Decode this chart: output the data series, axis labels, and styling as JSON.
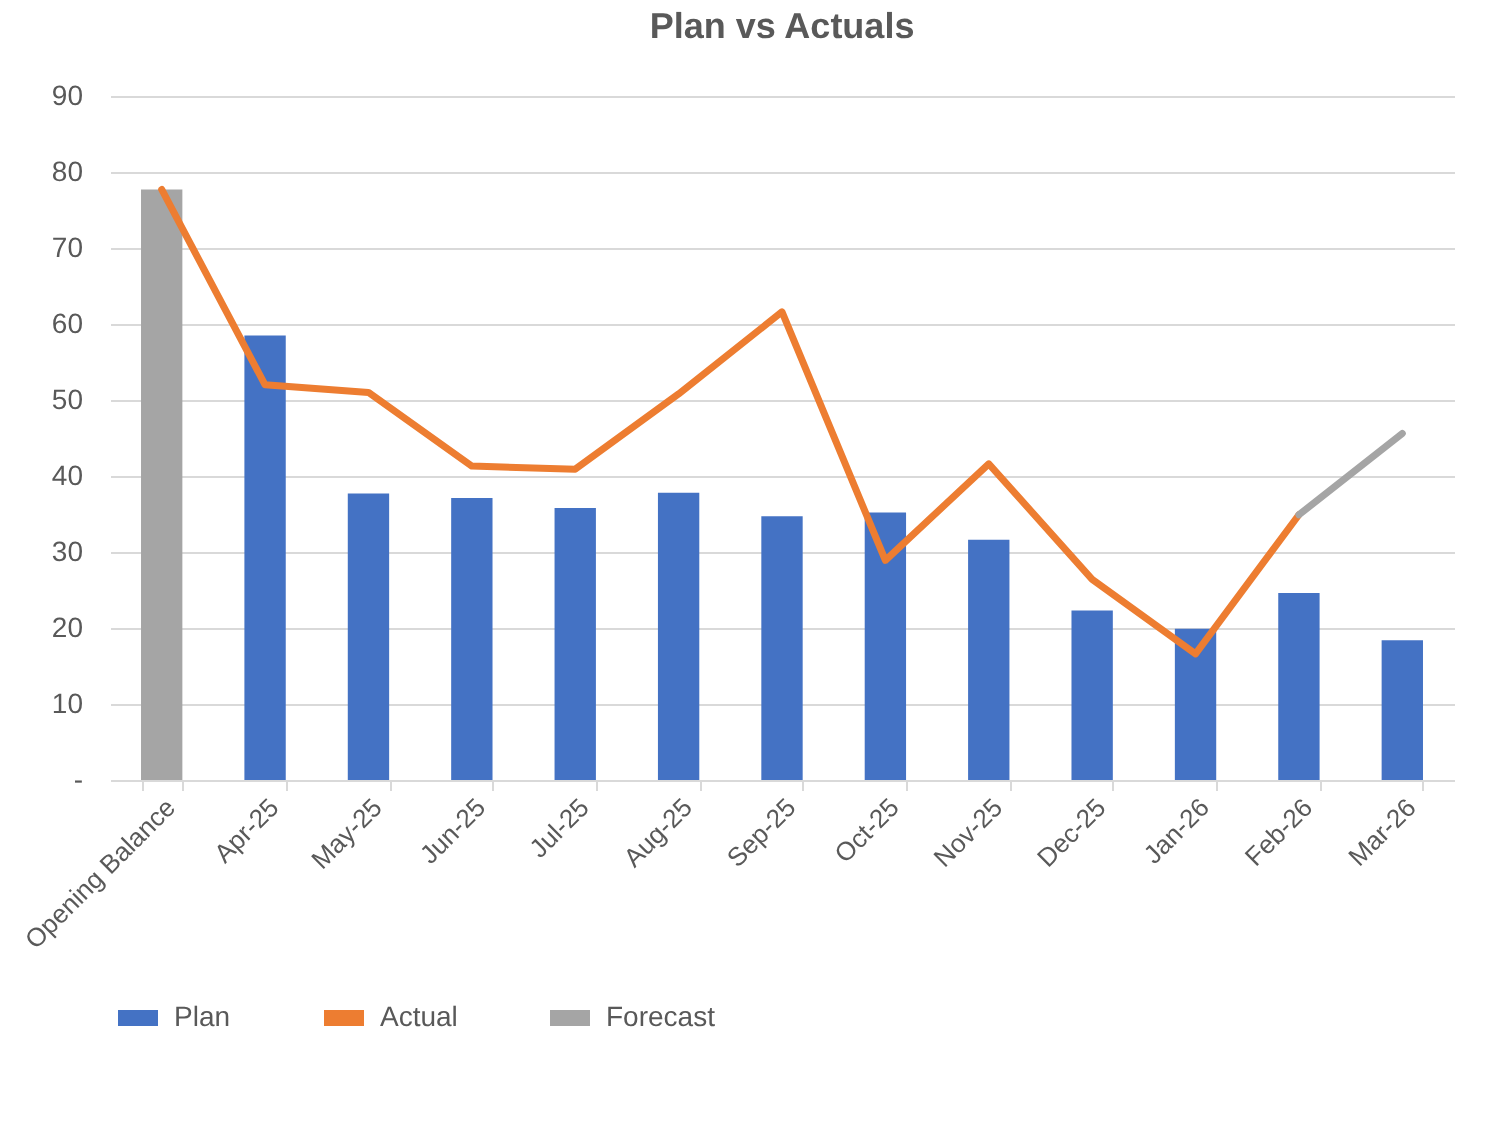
{
  "chart_data": {
    "type": "bar",
    "title": "Plan vs Actuals",
    "categories": [
      "Opening Balance",
      "Apr-25",
      "May-25",
      "Jun-25",
      "Jul-25",
      "Aug-25",
      "Sep-25",
      "Oct-25",
      "Nov-25",
      "Dec-25",
      "Jan-26",
      "Feb-26",
      "Mar-26"
    ],
    "series": [
      {
        "name": "Plan",
        "color": "#4472c4",
        "colors": [
          "#a5a5a5",
          "#4472c4",
          "#4472c4",
          "#4472c4",
          "#4472c4",
          "#4472c4",
          "#4472c4",
          "#4472c4",
          "#4472c4",
          "#4472c4",
          "#4472c4",
          "#4472c4",
          "#4472c4"
        ],
        "values": [
          77.7,
          58.5,
          37.7,
          37.1,
          35.8,
          37.8,
          34.7,
          35.2,
          31.6,
          22.3,
          19.9,
          24.6,
          18.4
        ]
      },
      {
        "name": "Actual",
        "type": "line",
        "color": "#ed7d31",
        "values": [
          77.7,
          52,
          51,
          41.3,
          40.9,
          50.8,
          61.6,
          28.9,
          41.6,
          26.4,
          16.6,
          34.9,
          null
        ]
      },
      {
        "name": "Forecast",
        "type": "line",
        "color": "#a5a5a5",
        "values": [
          null,
          null,
          null,
          null,
          null,
          null,
          null,
          null,
          null,
          null,
          null,
          34.9,
          45.6
        ]
      }
    ],
    "ylim": [
      0,
      90
    ],
    "yticks": [
      {
        "value": 0,
        "label": "-"
      },
      10,
      20,
      30,
      40,
      50,
      60,
      70,
      80,
      90
    ],
    "grid": "y",
    "legend": "bottom"
  }
}
